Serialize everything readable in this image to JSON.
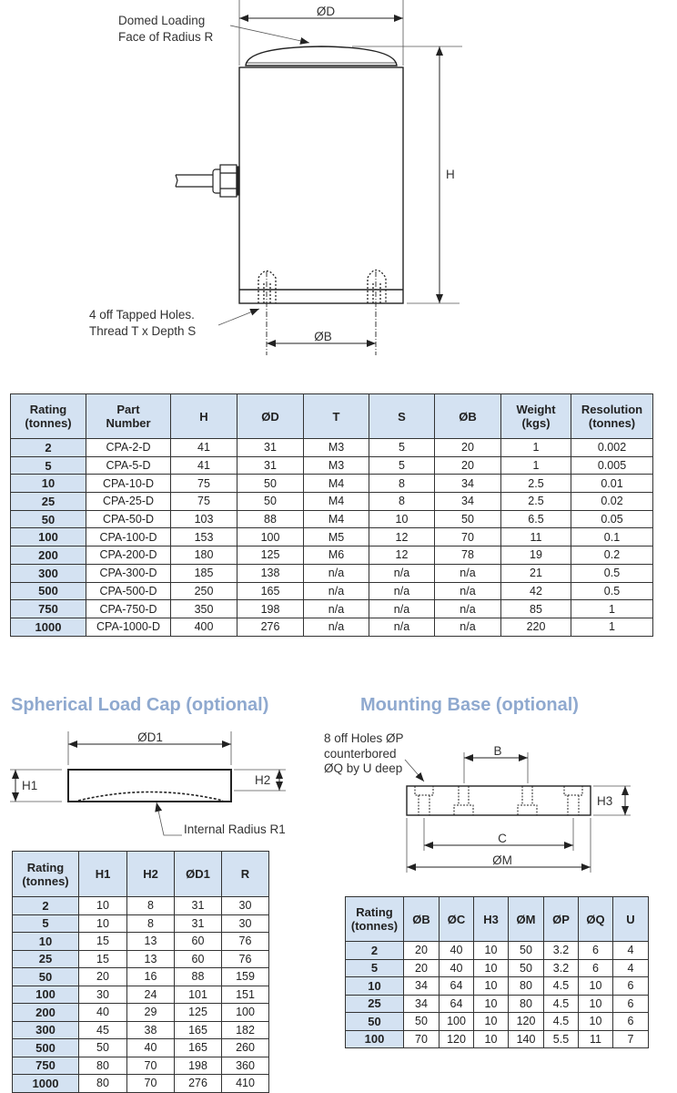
{
  "main_drawing": {
    "dim_d": "ØD",
    "dim_h": "H",
    "dim_b": "ØB",
    "dome_label_line1": "Domed Loading",
    "dome_label_line2": "Face of Radius R",
    "holes_label_line1": "4 off Tapped Holes.",
    "holes_label_line2": "Thread T x Depth S"
  },
  "main_table": {
    "headers": [
      [
        "Rating",
        "(tonnes)"
      ],
      [
        "Part",
        "Number"
      ],
      [
        "H"
      ],
      [
        "ØD"
      ],
      [
        "T"
      ],
      [
        "S"
      ],
      [
        "ØB"
      ],
      [
        "Weight",
        "(kgs)"
      ],
      [
        "Resolution",
        "(tonnes)"
      ]
    ],
    "rows": [
      [
        "2",
        "CPA-2-D",
        "41",
        "31",
        "M3",
        "5",
        "20",
        "1",
        "0.002"
      ],
      [
        "5",
        "CPA-5-D",
        "41",
        "31",
        "M3",
        "5",
        "20",
        "1",
        "0.005"
      ],
      [
        "10",
        "CPA-10-D",
        "75",
        "50",
        "M4",
        "8",
        "34",
        "2.5",
        "0.01"
      ],
      [
        "25",
        "CPA-25-D",
        "75",
        "50",
        "M4",
        "8",
        "34",
        "2.5",
        "0.02"
      ],
      [
        "50",
        "CPA-50-D",
        "103",
        "88",
        "M4",
        "10",
        "50",
        "6.5",
        "0.05"
      ],
      [
        "100",
        "CPA-100-D",
        "153",
        "100",
        "M5",
        "12",
        "70",
        "11",
        "0.1"
      ],
      [
        "200",
        "CPA-200-D",
        "180",
        "125",
        "M6",
        "12",
        "78",
        "19",
        "0.2"
      ],
      [
        "300",
        "CPA-300-D",
        "185",
        "138",
        "n/a",
        "n/a",
        "n/a",
        "21",
        "0.5"
      ],
      [
        "500",
        "CPA-500-D",
        "250",
        "165",
        "n/a",
        "n/a",
        "n/a",
        "42",
        "0.5"
      ],
      [
        "750",
        "CPA-750-D",
        "350",
        "198",
        "n/a",
        "n/a",
        "n/a",
        "85",
        "1"
      ],
      [
        "1000",
        "CPA-1000-D",
        "400",
        "276",
        "n/a",
        "n/a",
        "n/a",
        "220",
        "1"
      ]
    ]
  },
  "load_cap": {
    "title": "Spherical Load Cap (optional)",
    "dim_d1": "ØD1",
    "dim_h1": "H1",
    "dim_h2": "H2",
    "radius_label": "Internal Radius R1",
    "table": {
      "headers": [
        [
          "Rating",
          "(tonnes)"
        ],
        [
          "H1"
        ],
        [
          "H2"
        ],
        [
          "ØD1"
        ],
        [
          "R"
        ]
      ],
      "rows": [
        [
          "2",
          "10",
          "8",
          "31",
          "30"
        ],
        [
          "5",
          "10",
          "8",
          "31",
          "30"
        ],
        [
          "10",
          "15",
          "13",
          "60",
          "76"
        ],
        [
          "25",
          "15",
          "13",
          "60",
          "76"
        ],
        [
          "50",
          "20",
          "16",
          "88",
          "159"
        ],
        [
          "100",
          "30",
          "24",
          "101",
          "151"
        ],
        [
          "200",
          "40",
          "29",
          "125",
          "100"
        ],
        [
          "300",
          "45",
          "38",
          "165",
          "182"
        ],
        [
          "500",
          "50",
          "40",
          "165",
          "260"
        ],
        [
          "750",
          "80",
          "70",
          "198",
          "360"
        ],
        [
          "1000",
          "80",
          "70",
          "276",
          "410"
        ]
      ]
    }
  },
  "mounting_base": {
    "title": "Mounting Base (optional)",
    "holes_label_line1": "8 off Holes ØP",
    "holes_label_line2": "counterbored",
    "holes_label_line3": "ØQ by U deep",
    "dim_b": "B",
    "dim_c": "C",
    "dim_m": "ØM",
    "dim_h3": "H3",
    "table": {
      "headers": [
        [
          "Rating",
          "(tonnes)"
        ],
        [
          "ØB"
        ],
        [
          "ØC"
        ],
        [
          "H3"
        ],
        [
          "ØM"
        ],
        [
          "ØP"
        ],
        [
          "ØQ"
        ],
        [
          "U"
        ]
      ],
      "rows": [
        [
          "2",
          "20",
          "40",
          "10",
          "50",
          "3.2",
          "6",
          "4"
        ],
        [
          "5",
          "20",
          "40",
          "10",
          "50",
          "3.2",
          "6",
          "4"
        ],
        [
          "10",
          "34",
          "64",
          "10",
          "80",
          "4.5",
          "10",
          "6"
        ],
        [
          "25",
          "34",
          "64",
          "10",
          "80",
          "4.5",
          "10",
          "6"
        ],
        [
          "50",
          "50",
          "100",
          "10",
          "120",
          "4.5",
          "10",
          "6"
        ],
        [
          "100",
          "70",
          "120",
          "10",
          "140",
          "5.5",
          "11",
          "7"
        ]
      ]
    }
  },
  "colors": {
    "header_fill": "#d4e2f2",
    "title_blue": "#8fa9cf"
  }
}
